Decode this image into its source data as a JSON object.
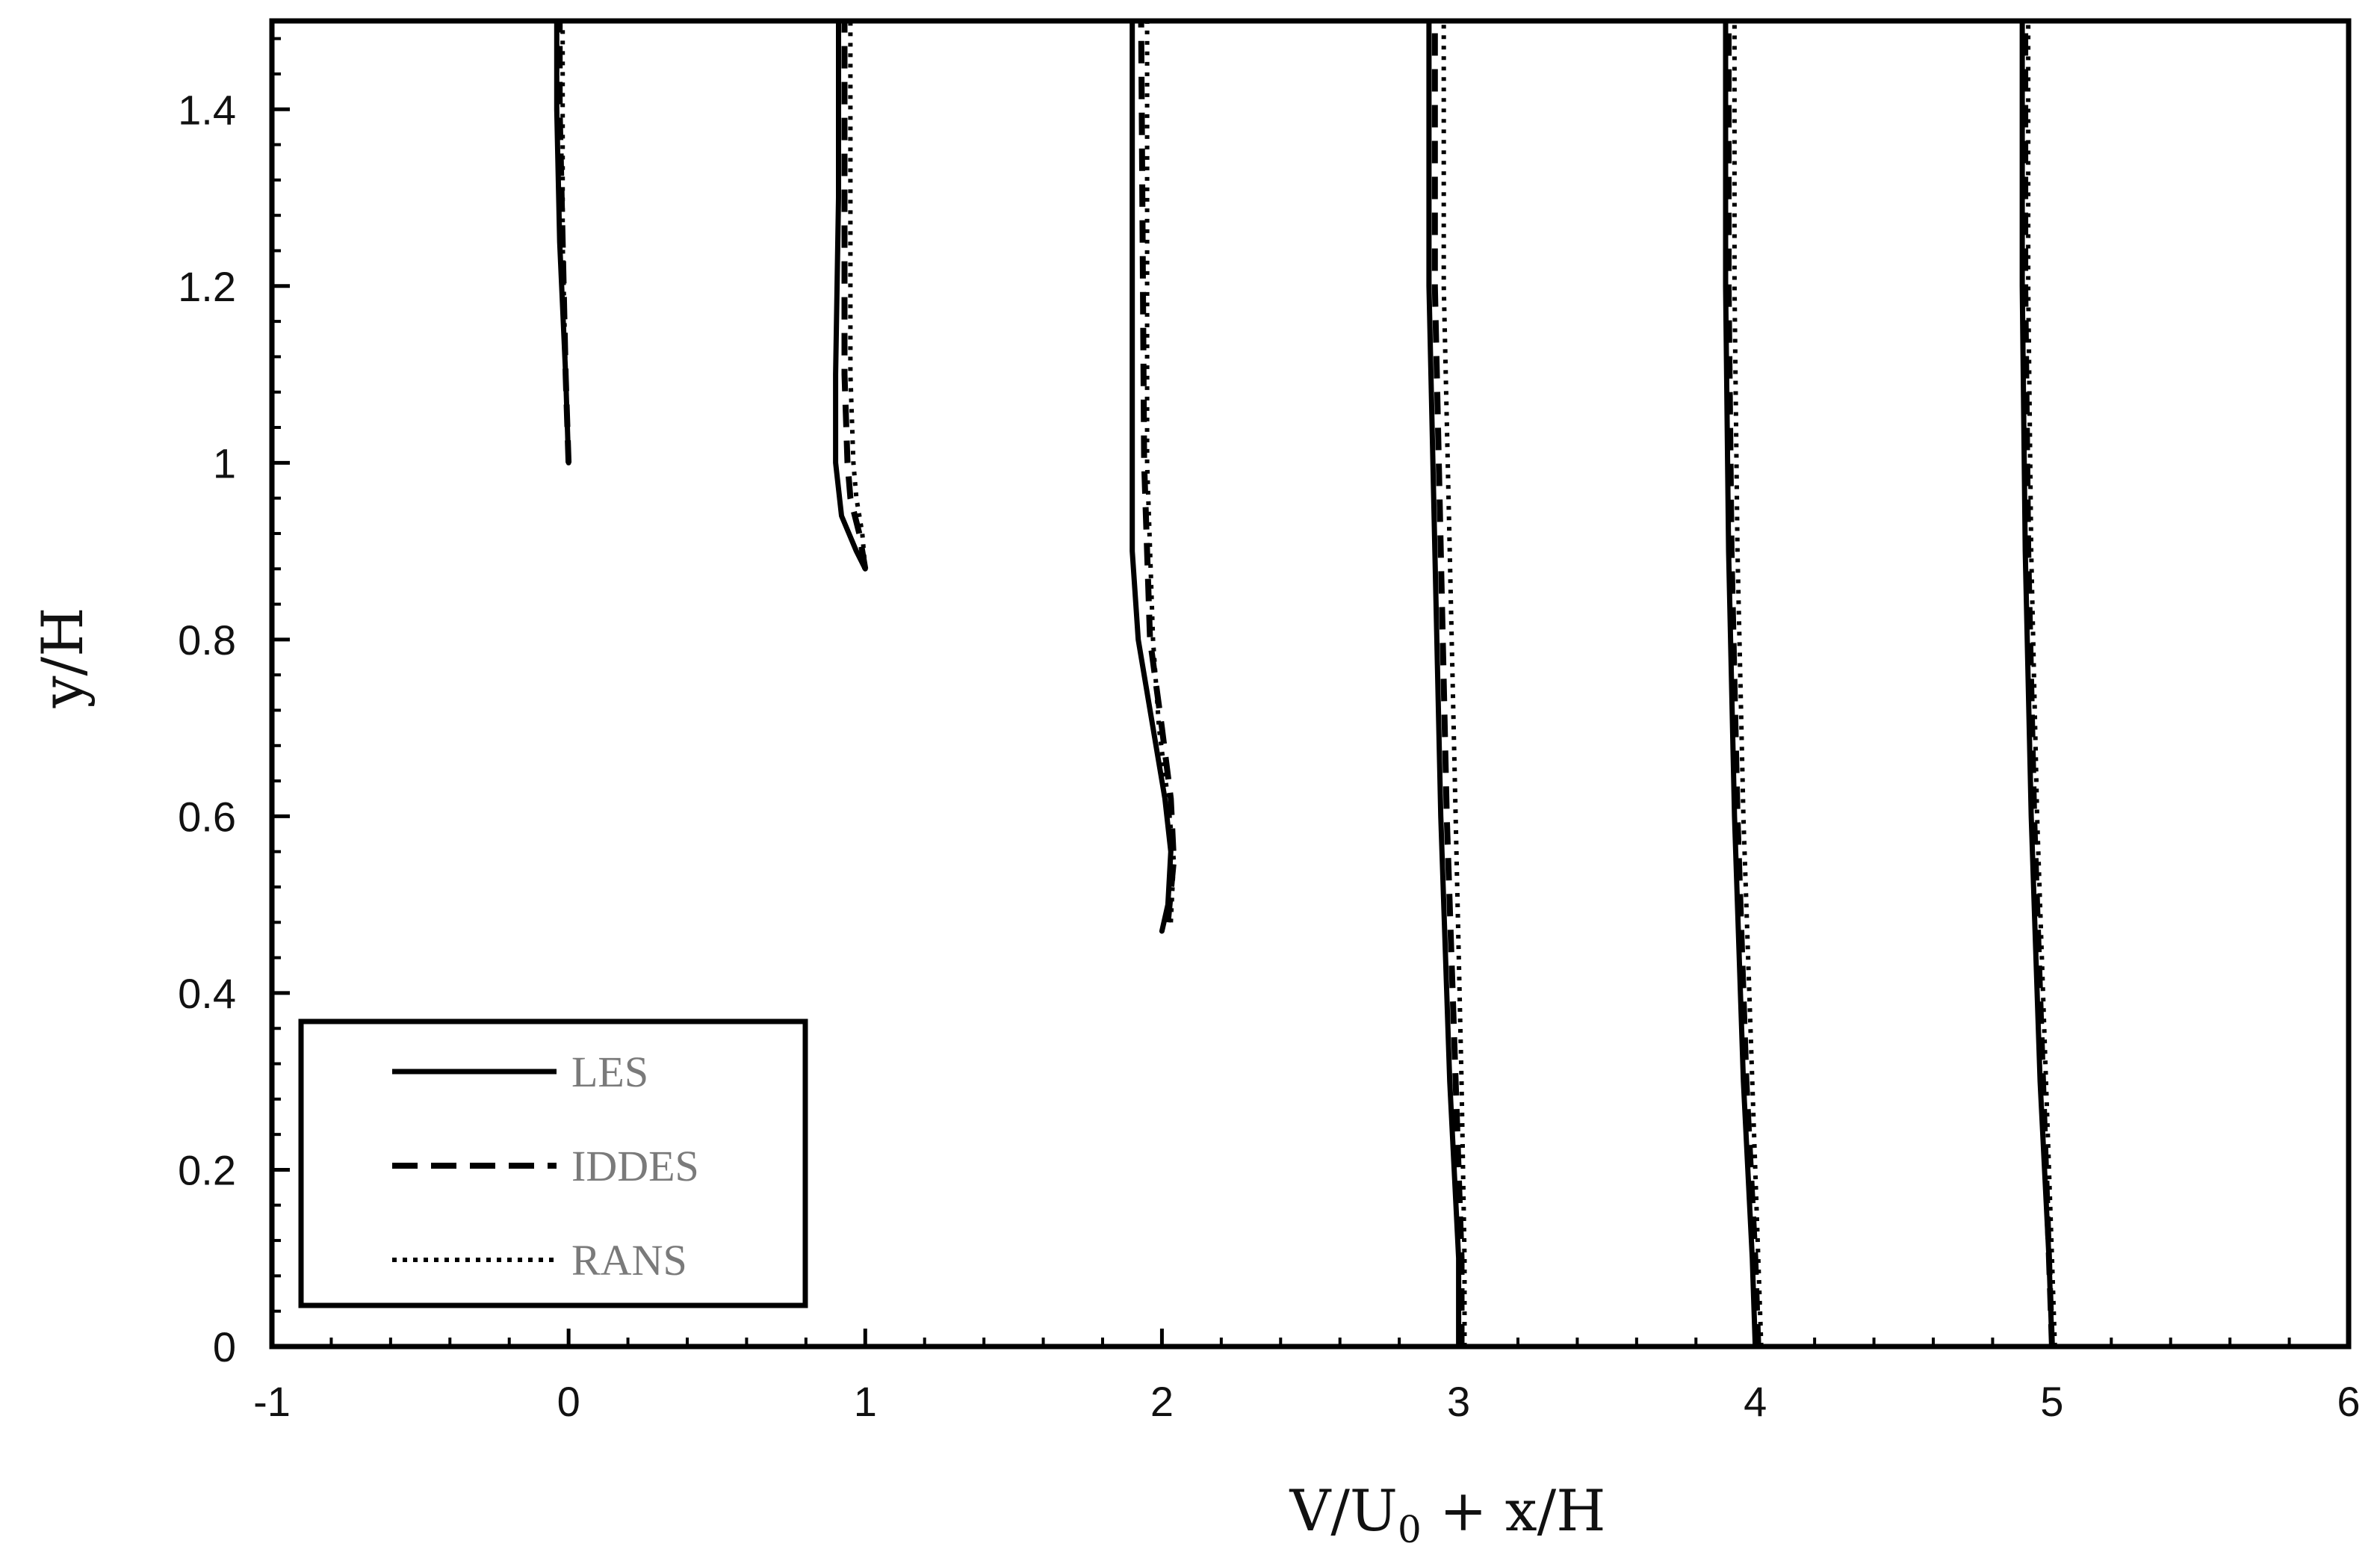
{
  "chart_data": {
    "type": "line",
    "title": "",
    "xlabel_main": "V/U",
    "xlabel_sub": "0",
    "xlabel_rest": " + x/H",
    "ylabel": "y/H",
    "xlim": [
      -1,
      6
    ],
    "ylim": [
      0,
      1.5
    ],
    "x_ticks": [
      -1,
      0,
      1,
      2,
      3,
      4,
      5,
      6
    ],
    "x_tick_labels": [
      "-1",
      "0",
      "1",
      "2",
      "3",
      "4",
      "5",
      "6"
    ],
    "y_ticks": [
      0,
      0.2,
      0.4,
      0.6,
      0.8,
      1.0,
      1.2,
      1.4
    ],
    "y_tick_labels": [
      "0",
      "0.2",
      "0.4",
      "0.6",
      "0.8",
      "1",
      "1.2",
      "1.4"
    ],
    "grid": false,
    "legend_position": "bottom-left",
    "series": [
      {
        "name": "LES",
        "style": "solid",
        "color": "#000000",
        "profiles": [
          {
            "x": [
              0.0,
              -0.01,
              -0.03,
              -0.04,
              -0.04
            ],
            "y": [
              1.0,
              1.1,
              1.25,
              1.4,
              1.5
            ]
          },
          {
            "x": [
              1.0,
              0.97,
              0.92,
              0.9,
              0.9,
              0.91,
              0.91
            ],
            "y": [
              0.88,
              0.9,
              0.94,
              1.0,
              1.1,
              1.3,
              1.5
            ]
          },
          {
            "x": [
              2.0,
              2.02,
              2.03,
              2.01,
              1.97,
              1.92,
              1.9,
              1.9
            ],
            "y": [
              0.47,
              0.5,
              0.56,
              0.62,
              0.7,
              0.8,
              0.9,
              1.5
            ]
          },
          {
            "x": [
              3.0,
              3.0,
              2.97,
              2.94,
              2.92,
              2.9,
              2.9
            ],
            "y": [
              0.0,
              0.1,
              0.3,
              0.6,
              0.9,
              1.2,
              1.5
            ]
          },
          {
            "x": [
              4.0,
              3.99,
              3.96,
              3.93,
              3.91,
              3.9,
              3.9
            ],
            "y": [
              0.0,
              0.1,
              0.3,
              0.6,
              0.9,
              1.2,
              1.5
            ]
          },
          {
            "x": [
              5.0,
              4.99,
              4.96,
              4.93,
              4.91,
              4.9,
              4.9
            ],
            "y": [
              0.0,
              0.1,
              0.3,
              0.6,
              0.9,
              1.2,
              1.5
            ]
          }
        ]
      },
      {
        "name": "IDDES",
        "style": "dashed",
        "color": "#000000",
        "profiles": [
          {
            "x": [
              0.0,
              -0.01,
              -0.02,
              -0.03,
              -0.03
            ],
            "y": [
              1.0,
              1.1,
              1.25,
              1.4,
              1.5
            ]
          },
          {
            "x": [
              1.0,
              0.98,
              0.95,
              0.94,
              0.93,
              0.93,
              0.93
            ],
            "y": [
              0.88,
              0.92,
              0.96,
              1.0,
              1.1,
              1.3,
              1.5
            ]
          },
          {
            "x": [
              2.02,
              2.04,
              2.03,
              2.0,
              1.96,
              1.94,
              1.93
            ],
            "y": [
              0.48,
              0.55,
              0.62,
              0.7,
              0.8,
              1.0,
              1.5
            ]
          },
          {
            "x": [
              3.01,
              3.01,
              2.99,
              2.96,
              2.94,
              2.92,
              2.92
            ],
            "y": [
              0.0,
              0.1,
              0.3,
              0.6,
              0.9,
              1.2,
              1.5
            ]
          },
          {
            "x": [
              4.01,
              4.0,
              3.97,
              3.94,
              3.92,
              3.91,
              3.91
            ],
            "y": [
              0.0,
              0.1,
              0.3,
              0.6,
              0.9,
              1.2,
              1.5
            ]
          },
          {
            "x": [
              5.0,
              4.99,
              4.97,
              4.94,
              4.92,
              4.91,
              4.91
            ],
            "y": [
              0.0,
              0.1,
              0.3,
              0.6,
              0.9,
              1.2,
              1.5
            ]
          }
        ]
      },
      {
        "name": "RANS",
        "style": "dotted",
        "color": "#000000",
        "profiles": [
          {
            "x": [
              0.0,
              -0.01,
              -0.02,
              -0.02,
              -0.02
            ],
            "y": [
              1.0,
              1.1,
              1.25,
              1.4,
              1.5
            ]
          },
          {
            "x": [
              1.0,
              0.99,
              0.97,
              0.96,
              0.95,
              0.95,
              0.95
            ],
            "y": [
              0.88,
              0.92,
              0.96,
              1.0,
              1.1,
              1.3,
              1.5
            ]
          },
          {
            "x": [
              2.03,
              2.04,
              2.02,
              1.99,
              1.97,
              1.95,
              1.95
            ],
            "y": [
              0.48,
              0.55,
              0.62,
              0.7,
              0.8,
              1.0,
              1.5
            ]
          },
          {
            "x": [
              3.02,
              3.02,
              3.01,
              2.99,
              2.97,
              2.95,
              2.95
            ],
            "y": [
              0.0,
              0.1,
              0.3,
              0.6,
              0.9,
              1.2,
              1.5
            ]
          },
          {
            "x": [
              4.02,
              4.01,
              3.99,
              3.96,
              3.94,
              3.93,
              3.93
            ],
            "y": [
              0.0,
              0.1,
              0.3,
              0.6,
              0.9,
              1.2,
              1.5
            ]
          },
          {
            "x": [
              5.01,
              5.0,
              4.98,
              4.95,
              4.93,
              4.92,
              4.92
            ],
            "y": [
              0.0,
              0.1,
              0.3,
              0.6,
              0.9,
              1.2,
              1.5
            ]
          }
        ]
      }
    ]
  }
}
